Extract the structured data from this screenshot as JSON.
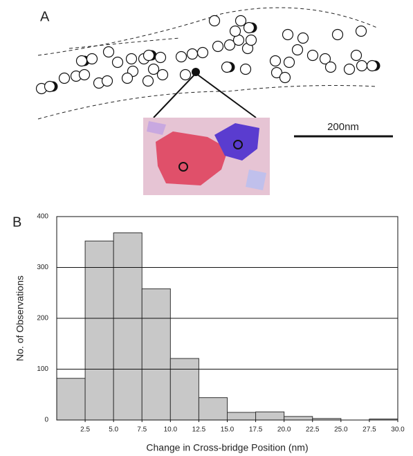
{
  "figure": {
    "panel_a": {
      "label": "A",
      "scale_bar": "200nm"
    }
  },
  "chart_data": {
    "type": "histogram",
    "panel_label": "B",
    "x_label": "Change in Cross-bridge Position (nm)",
    "y_label": "No. of Observations",
    "bins": [
      0,
      2.5,
      5,
      7.5,
      10,
      12.5,
      15,
      17.5,
      20,
      22.5,
      25,
      27.5,
      30
    ],
    "values": [
      82,
      352,
      368,
      258,
      121,
      44,
      15,
      16,
      7,
      3,
      0,
      2
    ],
    "color": "#c8c8c8",
    "grid": true,
    "xlim": [
      0,
      30
    ],
    "ylim": [
      0,
      400
    ],
    "xticks": [
      2.5,
      {
        "value": 5,
        "label": "5.0"
      },
      7.5,
      {
        "value": 10,
        "label": "10.0"
      },
      12.5,
      {
        "value": 15,
        "label": "15.0"
      },
      17.5,
      {
        "value": 20,
        "label": "20.0"
      },
      22.5,
      {
        "value": 25,
        "label": "25.0"
      },
      27.5,
      {
        "value": 30,
        "label": "30.0"
      }
    ],
    "yticks": [
      0,
      100,
      200,
      300,
      400
    ]
  }
}
